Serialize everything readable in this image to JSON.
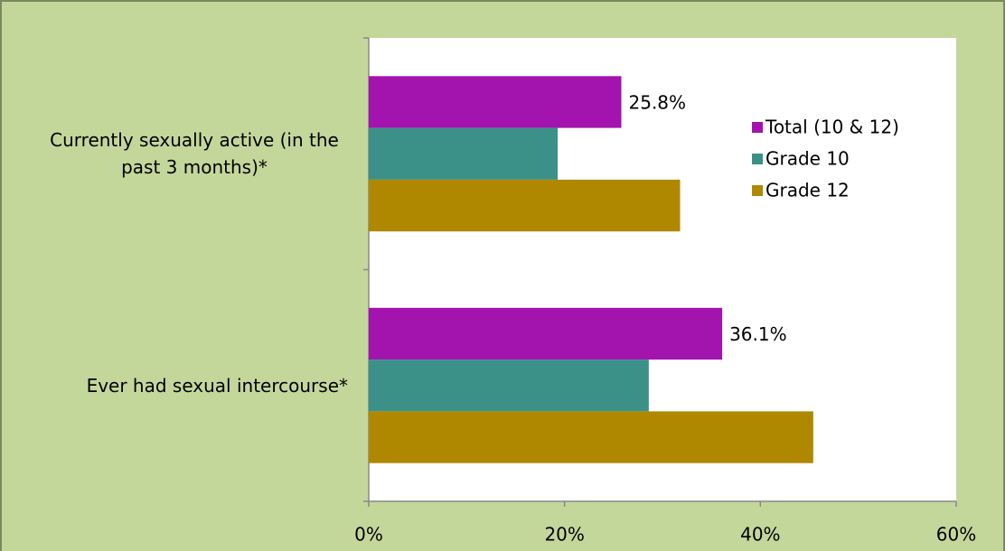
{
  "chart_data": {
    "type": "hbar",
    "categories": [
      "Currently sexually active (in the past 3 months)*",
      "Ever had sexual intercourse*"
    ],
    "series": [
      {
        "name": "Total (10 & 12)",
        "color": "#a313ad",
        "values": [
          25.8,
          36.1
        ],
        "value_labels": [
          "25.8%",
          "36.1%"
        ]
      },
      {
        "name": "Grade 10",
        "color": "#3b9188",
        "values": [
          19.3,
          28.6
        ]
      },
      {
        "name": "Grade 12",
        "color": "#b08800",
        "values": [
          31.8,
          45.4
        ]
      }
    ],
    "xlim": [
      0,
      60
    ],
    "xticks": [
      {
        "value": 0,
        "label": "0%"
      },
      {
        "value": 20,
        "label": "20%"
      },
      {
        "value": 40,
        "label": "40%"
      },
      {
        "value": 60,
        "label": "60%"
      }
    ],
    "legend": "top-right"
  }
}
